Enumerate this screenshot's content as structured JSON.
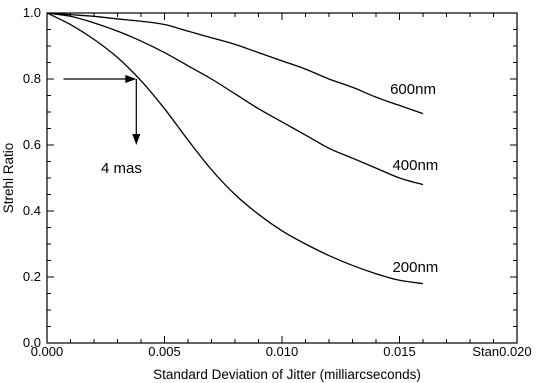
{
  "chart_data": {
    "type": "line",
    "xlabel": "Standard Deviation of Jitter (milliarcseconds)",
    "ylabel": "Strehl Ratio",
    "xlim": [
      0,
      0.02
    ],
    "ylim": [
      0,
      1
    ],
    "x_ticks": [
      {
        "value": 0,
        "label": "0.000"
      },
      {
        "value": 0.005,
        "label": "0.005"
      },
      {
        "value": 0.01,
        "label": "0.010"
      },
      {
        "value": 0.015,
        "label": "0.015"
      },
      {
        "value": 0.02,
        "label": "Stan0.020"
      }
    ],
    "y_ticks": [
      {
        "value": 0,
        "label": "0.0"
      },
      {
        "value": 0.2,
        "label": "0.2"
      },
      {
        "value": 0.4,
        "label": "0.4"
      },
      {
        "value": 0.6,
        "label": "0.6"
      },
      {
        "value": 0.8,
        "label": "0.8"
      },
      {
        "value": 1,
        "label": "1.0"
      }
    ],
    "grid": false,
    "series": [
      {
        "name": "600nm",
        "x": [
          0,
          0.001,
          0.002,
          0.003,
          0.004,
          0.005,
          0.006,
          0.007,
          0.008,
          0.009,
          0.01,
          0.011,
          0.012,
          0.013,
          0.014,
          0.015,
          0.016
        ],
        "y": [
          1.0,
          0.995,
          0.99,
          0.982,
          0.975,
          0.965,
          0.945,
          0.925,
          0.905,
          0.88,
          0.855,
          0.83,
          0.8,
          0.775,
          0.745,
          0.72,
          0.695
        ]
      },
      {
        "name": "400nm",
        "x": [
          0,
          0.001,
          0.002,
          0.003,
          0.004,
          0.005,
          0.006,
          0.007,
          0.008,
          0.009,
          0.01,
          0.011,
          0.012,
          0.013,
          0.014,
          0.015,
          0.016
        ],
        "y": [
          1.0,
          0.99,
          0.97,
          0.945,
          0.915,
          0.88,
          0.84,
          0.8,
          0.755,
          0.71,
          0.67,
          0.63,
          0.59,
          0.56,
          0.53,
          0.5,
          0.48
        ]
      },
      {
        "name": "200nm",
        "x": [
          0,
          0.001,
          0.002,
          0.003,
          0.004,
          0.005,
          0.006,
          0.007,
          0.008,
          0.009,
          0.01,
          0.011,
          0.012,
          0.013,
          0.014,
          0.015,
          0.016
        ],
        "y": [
          1.0,
          0.965,
          0.92,
          0.865,
          0.795,
          0.71,
          0.615,
          0.525,
          0.45,
          0.39,
          0.34,
          0.3,
          0.265,
          0.235,
          0.21,
          0.19,
          0.18
        ]
      }
    ],
    "series_labels": [
      {
        "text": "600nm",
        "x": 0.0146,
        "y": 0.755
      },
      {
        "text": "400nm",
        "x": 0.0147,
        "y": 0.525
      },
      {
        "text": "200nm",
        "x": 0.0147,
        "y": 0.215
      }
    ],
    "annotation": {
      "text": "4 mas",
      "arrow_y": 0.8,
      "arrow_from_x": 0.0007,
      "arrow_x": 0.0038,
      "arrow_down_to_y": 0.6,
      "label_x": 0.0023,
      "label_y": 0.515
    }
  }
}
